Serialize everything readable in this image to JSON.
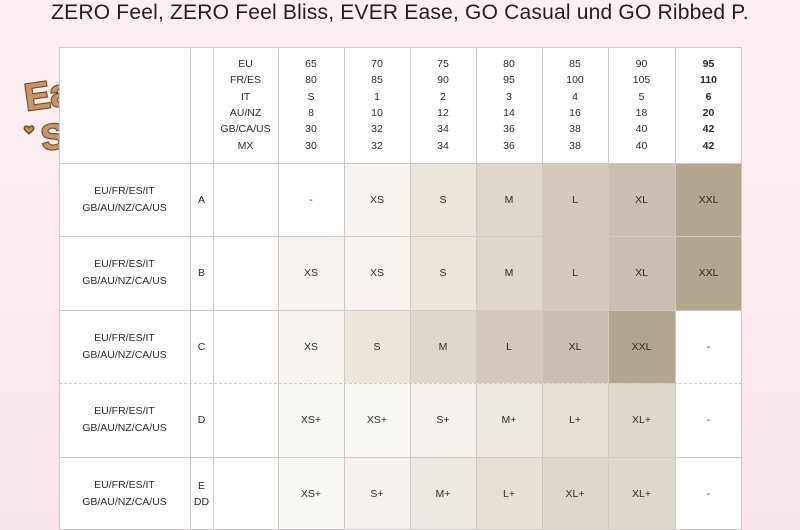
{
  "title": "ZERO Feel, ZERO Feel Bliss, EVER Ease, GO Casual und GO Ribbed P.",
  "logo": {
    "line1": "Easy",
    "line2": "Sizing"
  },
  "header": {
    "systems": [
      "EU",
      "FR/ES",
      "IT",
      "AU/NZ",
      "GB/CA/US",
      "MX"
    ],
    "columns": [
      [
        "65",
        "80",
        "S",
        "8",
        "30",
        "30"
      ],
      [
        "70",
        "85",
        "1",
        "10",
        "32",
        "32"
      ],
      [
        "75",
        "90",
        "2",
        "12",
        "34",
        "34"
      ],
      [
        "80",
        "95",
        "3",
        "14",
        "36",
        "36"
      ],
      [
        "85",
        "100",
        "4",
        "16",
        "38",
        "38"
      ],
      [
        "90",
        "105",
        "5",
        "18",
        "40",
        "40"
      ],
      [
        "95",
        "110",
        "6",
        "20",
        "42",
        "42"
      ]
    ]
  },
  "rows": [
    {
      "system1": "EU/FR/ES/IT",
      "system2": "GB/AU/NZ/CA/US",
      "cup1": "A",
      "cup2": "",
      "sizes": [
        "-",
        "XS",
        "S",
        "M",
        "L",
        "XL",
        "XXL"
      ]
    },
    {
      "system1": "EU/FR/ES/IT",
      "system2": "GB/AU/NZ/CA/US",
      "cup1": "B",
      "cup2": "",
      "sizes": [
        "XS",
        "XS",
        "S",
        "M",
        "L",
        "XL",
        "XXL"
      ]
    },
    {
      "system1": "EU/FR/ES/IT",
      "system2": "GB/AU/NZ/CA/US",
      "cup1": "C",
      "cup2": "",
      "sizes": [
        "XS",
        "S",
        "M",
        "L",
        "XL",
        "XXL",
        "-"
      ]
    },
    {
      "system1": "EU/FR/ES/IT",
      "system2": "GB/AU/NZ/CA/US",
      "cup1": "D",
      "cup2": "",
      "sizes": [
        "XS+",
        "XS+",
        "S+",
        "M+",
        "L+",
        "XL+",
        "-"
      ]
    },
    {
      "system1": "EU/FR/ES/IT",
      "system2": "GB/AU/NZ/CA/US",
      "cup1": "E",
      "cup2": "DD",
      "sizes": [
        "XS+",
        "S+",
        "M+",
        "L+",
        "XL+",
        "XL+",
        "-"
      ]
    }
  ],
  "colors": {
    "none": "#ffffff",
    "XS": "#f6f3ee",
    "S": "#ebe5dc",
    "M": "#dfd7cc",
    "L": "#d4c9bb",
    "XL": "#cabfae",
    "XXL": "#b3a68f",
    "XS+": "#faf8f5",
    "S+": "#f4f1ec",
    "M+": "#ede8e1",
    "L+": "#e6e0d7",
    "XL+": "#ded7cc",
    "logo_fill": "#c49768",
    "logo_outline": "#6e4a2c"
  }
}
